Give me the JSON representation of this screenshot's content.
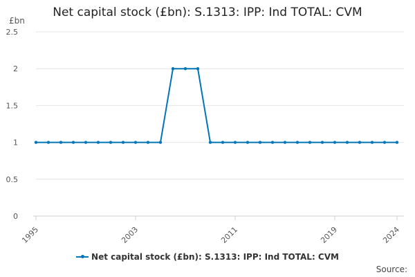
{
  "chart_data": {
    "type": "line",
    "title": "Net capital stock (£bn): S.1313: IPP: Ind TOTAL: CVM",
    "y_unit": "£bn",
    "xlabel": "",
    "ylabel": "",
    "x": [
      1995,
      1996,
      1997,
      1998,
      1999,
      2000,
      2001,
      2002,
      2003,
      2004,
      2005,
      2006,
      2007,
      2008,
      2009,
      2010,
      2011,
      2012,
      2013,
      2014,
      2015,
      2016,
      2017,
      2018,
      2019,
      2020,
      2021,
      2022,
      2023,
      2024
    ],
    "xlim": [
      1995,
      2024
    ],
    "x_ticks": [
      "1995",
      "2003",
      "2011",
      "2019",
      "2024"
    ],
    "ylim": [
      0,
      2.5
    ],
    "y_ticks": [
      "0",
      "0.5",
      "1",
      "1.5",
      "2",
      "2.5"
    ],
    "grid": true,
    "legend_position": "bottom",
    "series": [
      {
        "name": "Net capital stock (£bn): S.1313: IPP: Ind TOTAL: CVM",
        "color": "#0075b5",
        "values": [
          1,
          1,
          1,
          1,
          1,
          1,
          1,
          1,
          1,
          1,
          1,
          2,
          2,
          2,
          1,
          1,
          1,
          1,
          1,
          1,
          1,
          1,
          1,
          1,
          1,
          1,
          1,
          1,
          1,
          1
        ]
      }
    ],
    "source_label": "Source:"
  }
}
